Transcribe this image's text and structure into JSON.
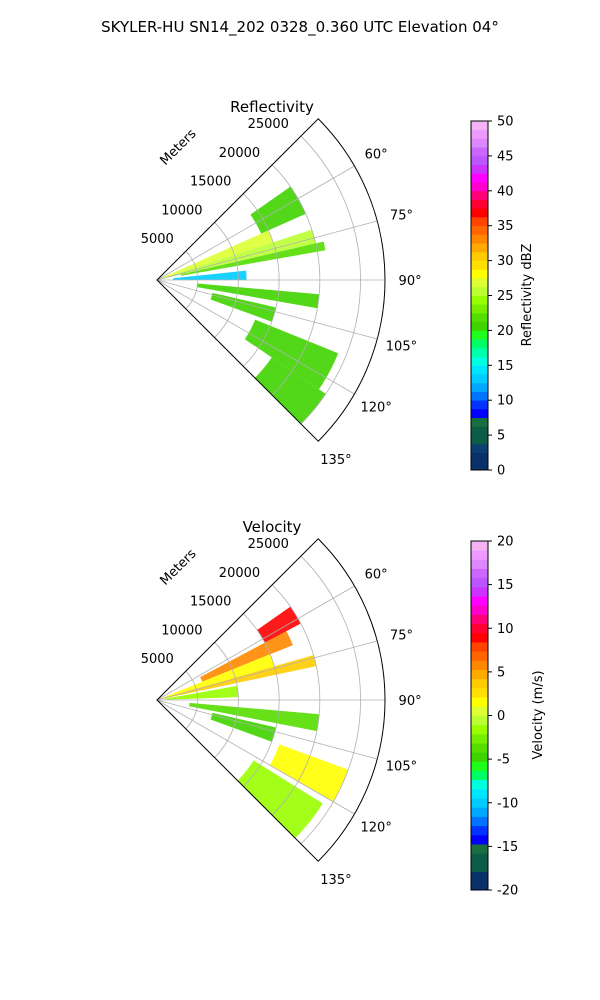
{
  "figure_title": "SKYLER-HU  SN14_202  0328_0.360 UTC Elevation 04°",
  "chart_data": [
    {
      "type": "polar-sector",
      "title": "Reflectivity",
      "range_label": "Meters",
      "range_ticks": [
        5000,
        10000,
        15000,
        20000,
        25000
      ],
      "range_max": 28000,
      "azimuth_range_deg": [
        45,
        135
      ],
      "azimuth_ticks": [
        "60°",
        "75°",
        "90°",
        "105°",
        "120°",
        "135°"
      ],
      "grid": true,
      "colorbar": {
        "label": "Reflectivity dBZ",
        "min": 0,
        "max": 50,
        "ticks": [
          0,
          5,
          10,
          15,
          20,
          25,
          30,
          35,
          40,
          45,
          50
        ],
        "colors": [
          "#08306b",
          "#08306b",
          "#0a3f6f",
          "#0f5c46",
          "#0f5c46",
          "#1a6f40",
          "#0000ff",
          "#0033ff",
          "#0073ff",
          "#00a8ff",
          "#00ccff",
          "#00e5ff",
          "#00ffe0",
          "#00ffaa",
          "#00ff66",
          "#1fff1f",
          "#3fd400",
          "#55dd00",
          "#77ee00",
          "#99ff00",
          "#bbff33",
          "#ddff33",
          "#ffff00",
          "#ffe000",
          "#ffcc00",
          "#ffaa00",
          "#ff8800",
          "#ff6600",
          "#ff4400",
          "#ff0000",
          "#ff0033",
          "#ff0077",
          "#ff00cc",
          "#ff00ff",
          "#cc33ff",
          "#bb55ff",
          "#cc66ff",
          "#dd88ff",
          "#ee99ff",
          "#f5b3f5"
        ]
      },
      "echo_bands": [
        {
          "az": [
            55,
            66
          ],
          "range": [
            14000,
            20000
          ],
          "value": 20
        },
        {
          "az": [
            66,
            72
          ],
          "range": [
            0,
            15000
          ],
          "value": 27
        },
        {
          "az": [
            72,
            77
          ],
          "range": [
            0,
            20000
          ],
          "value": 25
        },
        {
          "az": [
            77,
            80
          ],
          "range": [
            3000,
            21000
          ],
          "value": 22
        },
        {
          "az": [
            84,
            90
          ],
          "range": [
            2000,
            11000
          ],
          "value": 13
        },
        {
          "az": [
            95,
            100
          ],
          "range": [
            5000,
            20000
          ],
          "value": 20
        },
        {
          "az": [
            103,
            110
          ],
          "range": [
            7000,
            15000
          ],
          "value": 21
        },
        {
          "az": [
            112,
            124
          ],
          "range": [
            13000,
            24000
          ],
          "value": 21
        },
        {
          "az": [
            124,
            135
          ],
          "range": [
            17000,
            25000
          ],
          "value": 20
        }
      ]
    },
    {
      "type": "polar-sector",
      "title": "Velocity",
      "range_label": "Meters",
      "range_ticks": [
        5000,
        10000,
        15000,
        20000,
        25000
      ],
      "range_max": 28000,
      "azimuth_range_deg": [
        45,
        135
      ],
      "azimuth_ticks": [
        "60°",
        "75°",
        "90°",
        "105°",
        "120°",
        "135°"
      ],
      "grid": true,
      "colorbar": {
        "label": "Velocity (m/s)",
        "min": -20,
        "max": 20,
        "ticks": [
          -20,
          -15,
          -10,
          -5,
          0,
          5,
          10,
          15,
          20
        ],
        "colors": [
          "#08306b",
          "#08306b",
          "#0f5c46",
          "#0f5c46",
          "#1a6f40",
          "#0000ff",
          "#0033ff",
          "#0073ff",
          "#00a8ff",
          "#00ccff",
          "#00e5ff",
          "#00ffe0",
          "#00ff66",
          "#1fff1f",
          "#3fd400",
          "#55dd00",
          "#77ee00",
          "#99ff00",
          "#bbff33",
          "#ddff33",
          "#ffff00",
          "#ffe000",
          "#ffcc00",
          "#ffaa00",
          "#ff8800",
          "#ff6600",
          "#ff4400",
          "#ff0000",
          "#ff0033",
          "#ff0077",
          "#ff00cc",
          "#ff00ff",
          "#cc33ff",
          "#bb55ff",
          "#cc66ff",
          "#dd88ff",
          "#ee99ff",
          "#f5b3f5"
        ]
      },
      "echo_bands": [
        {
          "az": [
            55,
            62
          ],
          "range": [
            15000,
            20000
          ],
          "value": 9
        },
        {
          "az": [
            62,
            68
          ],
          "range": [
            6000,
            18000
          ],
          "value": 6
        },
        {
          "az": [
            68,
            74
          ],
          "range": [
            0,
            15000
          ],
          "value": 2
        },
        {
          "az": [
            74,
            78
          ],
          "range": [
            0,
            20000
          ],
          "value": 4
        },
        {
          "az": [
            80,
            88
          ],
          "range": [
            1000,
            10000
          ],
          "value": -2
        },
        {
          "az": [
            95,
            101
          ],
          "range": [
            4000,
            20000
          ],
          "value": -4
        },
        {
          "az": [
            103,
            110
          ],
          "range": [
            7000,
            15000
          ],
          "value": -5
        },
        {
          "az": [
            110,
            120
          ],
          "range": [
            16000,
            25000
          ],
          "value": 2
        },
        {
          "az": [
            122,
            135
          ],
          "range": [
            14000,
            24000
          ],
          "value": -2
        }
      ]
    }
  ]
}
